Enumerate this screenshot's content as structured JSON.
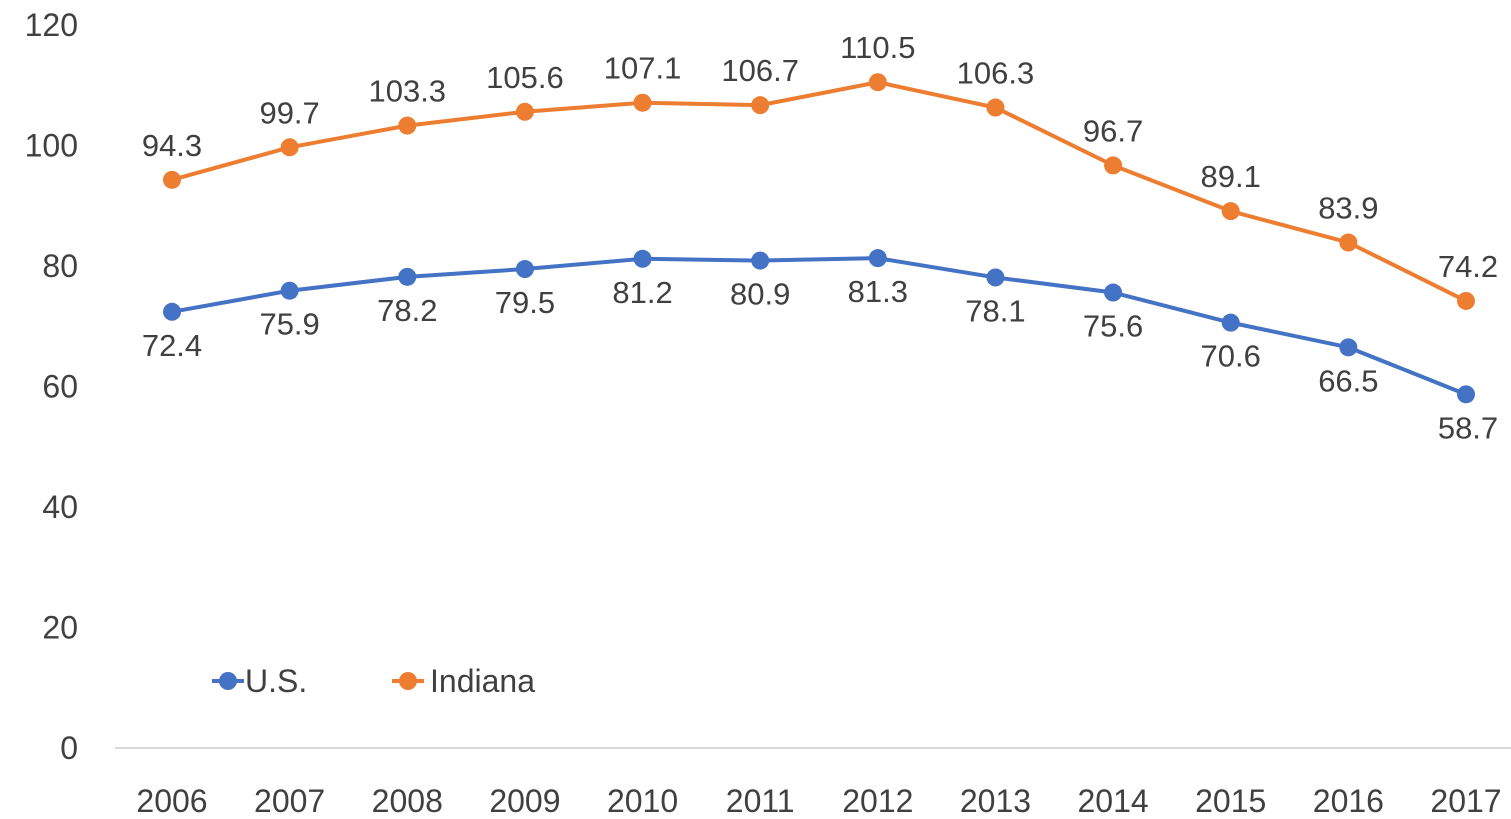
{
  "chart_data": {
    "type": "line",
    "title": "",
    "xlabel": "",
    "ylabel": "",
    "categories": [
      "2006",
      "2007",
      "2008",
      "2009",
      "2010",
      "2011",
      "2012",
      "2013",
      "2014",
      "2015",
      "2016",
      "2017"
    ],
    "yticks": [
      "0",
      "20",
      "40",
      "60",
      "80",
      "100",
      "120"
    ],
    "ylim": [
      0,
      120
    ],
    "grid": false,
    "legend_position": "bottom-left",
    "series": [
      {
        "name": "U.S.",
        "color": "#4472C4",
        "values": [
          72.4,
          75.9,
          78.2,
          79.5,
          81.2,
          80.9,
          81.3,
          78.1,
          75.6,
          70.6,
          66.5,
          58.7
        ],
        "labels": [
          "72.4",
          "75.9",
          "78.2",
          "79.5",
          "81.2",
          "80.9",
          "81.3",
          "78.1",
          "75.6",
          "70.6",
          "66.5",
          "58.7"
        ]
      },
      {
        "name": "Indiana",
        "color": "#ED7D31",
        "values": [
          94.3,
          99.7,
          103.3,
          105.6,
          107.1,
          106.7,
          110.5,
          106.3,
          96.7,
          89.1,
          83.9,
          74.2
        ],
        "labels": [
          "94.3",
          "99.7",
          "103.3",
          "105.6",
          "107.1",
          "106.7",
          "110.5",
          "106.3",
          "96.7",
          "89.1",
          "83.9",
          "74.2"
        ]
      }
    ]
  }
}
